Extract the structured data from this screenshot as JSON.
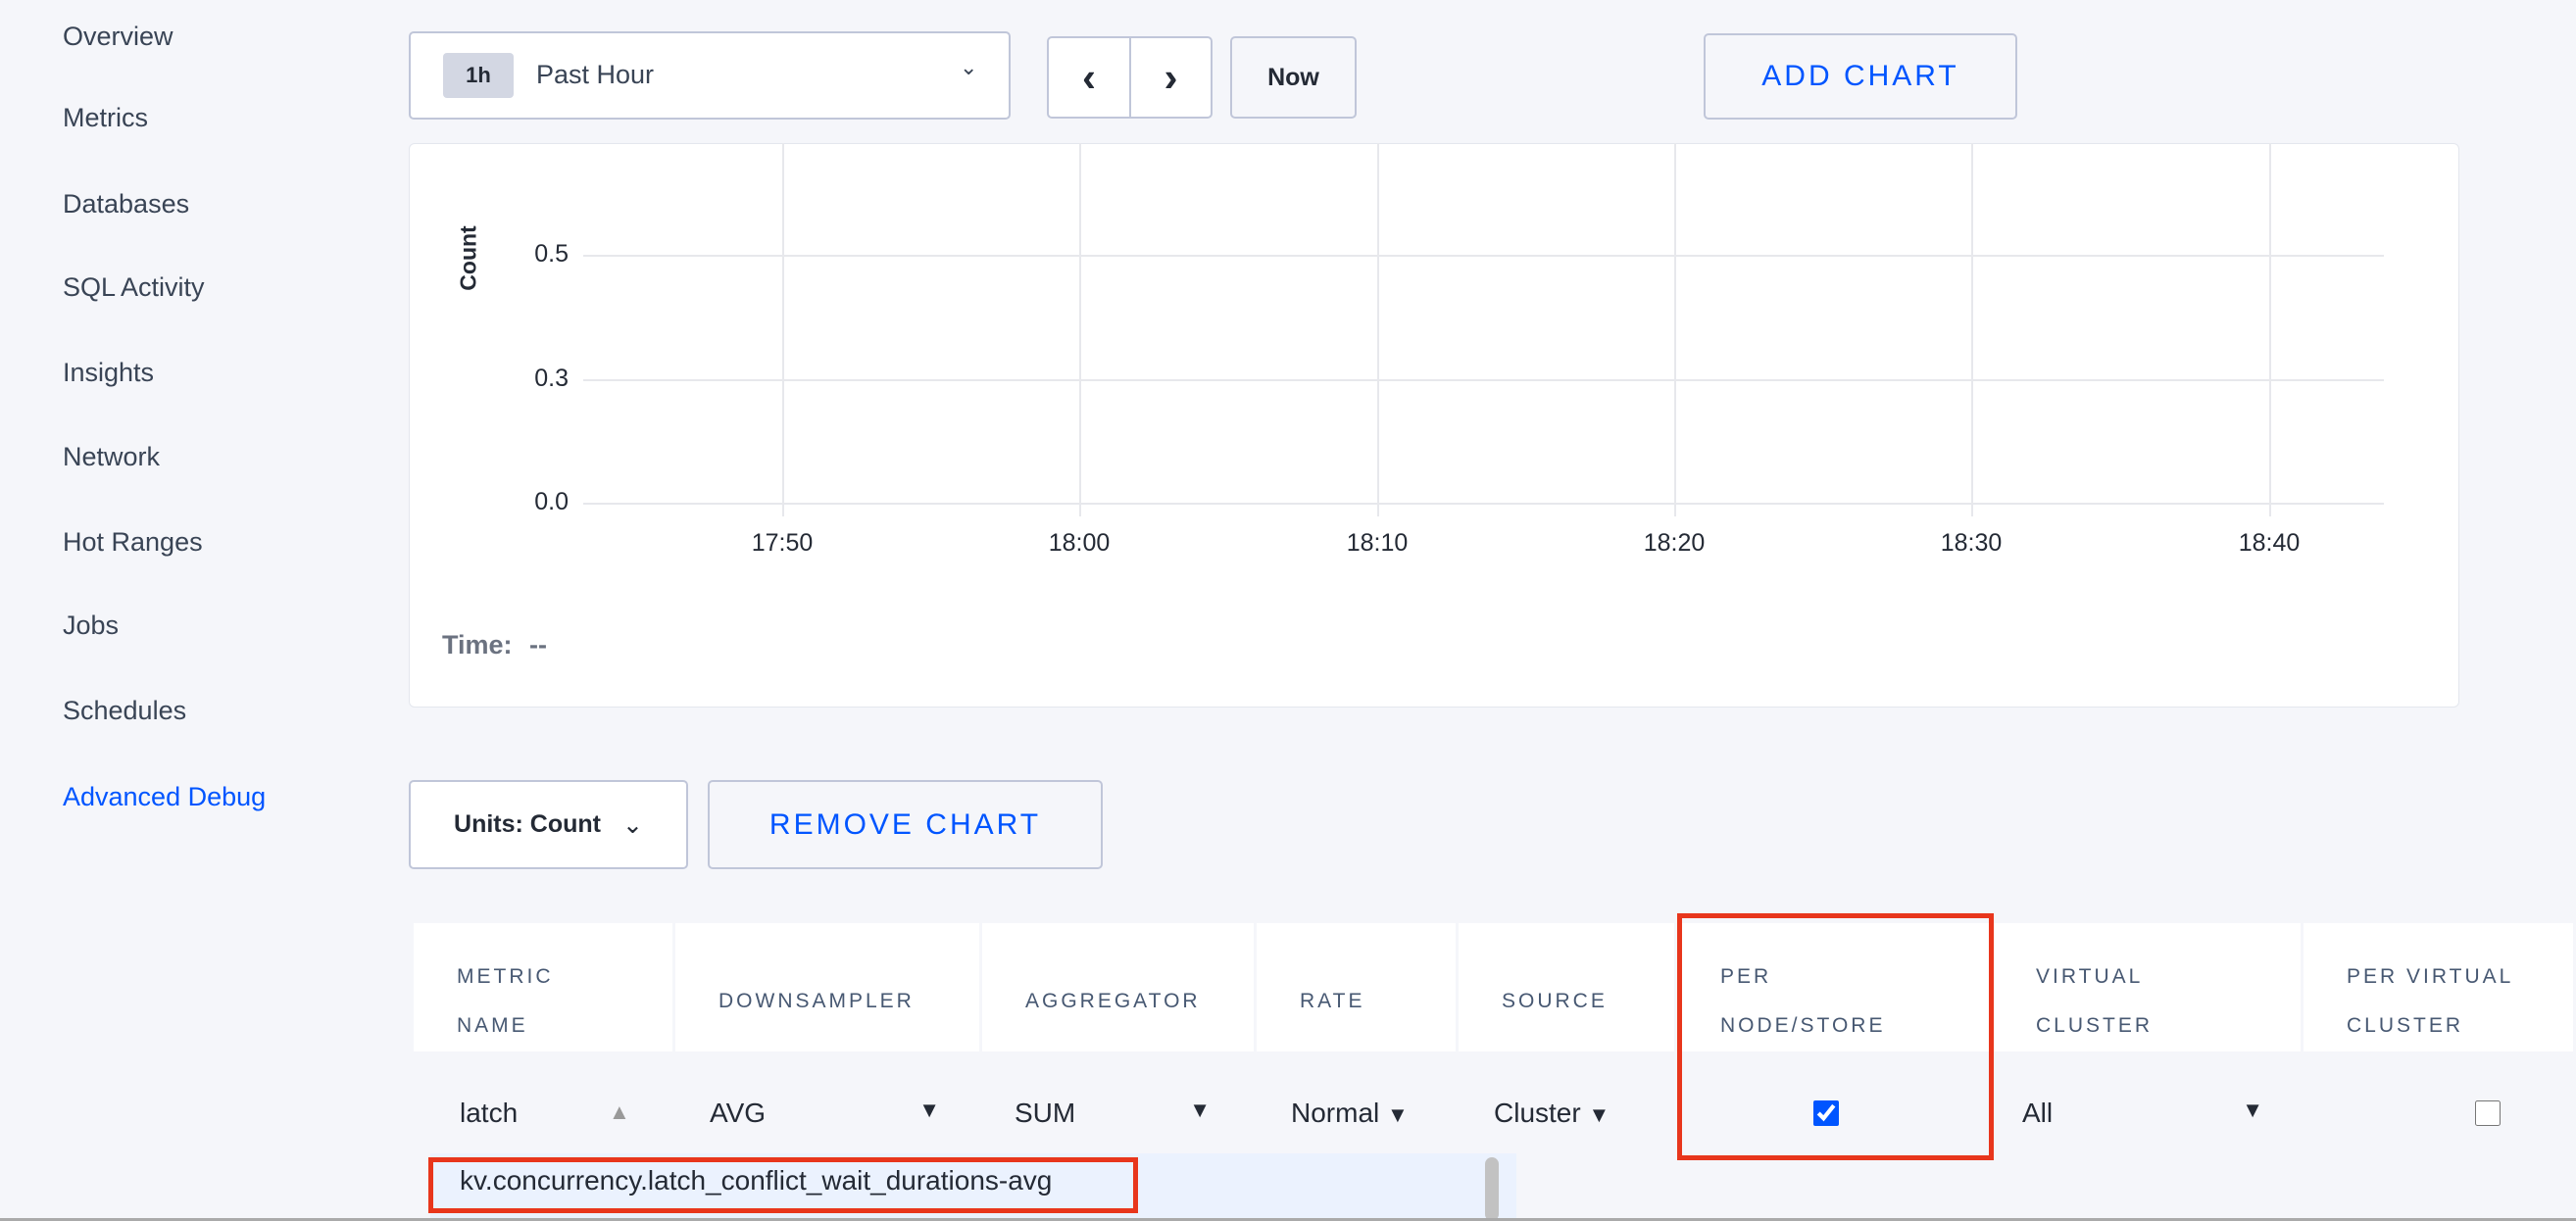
{
  "sidebar": {
    "items": [
      "Overview",
      "Metrics",
      "Databases",
      "SQL Activity",
      "Insights",
      "Network",
      "Hot Ranges",
      "Jobs",
      "Schedules",
      "Advanced Debug"
    ],
    "active": "Advanced Debug"
  },
  "toolbar": {
    "time_badge": "1h",
    "time_label": "Past Hour",
    "prev_icon": "chevron-left-icon",
    "next_icon": "chevron-right-icon",
    "now_label": "Now",
    "add_chart_label": "ADD CHART"
  },
  "chart_data": {
    "type": "line",
    "ylabel": "Count",
    "yticks": [
      "0.5",
      "0.3",
      "0.0"
    ],
    "xticks": [
      "17:50",
      "18:00",
      "18:10",
      "18:20",
      "18:30",
      "18:40"
    ],
    "series": [],
    "grid": true,
    "time_label": "Time:",
    "time_value": "--"
  },
  "controls": {
    "units_label": "Units: Count",
    "remove_chart_label": "REMOVE CHART"
  },
  "table": {
    "headers": [
      [
        "METRIC",
        "NAME"
      ],
      [
        "DOWNSAMPLER"
      ],
      [
        "AGGREGATOR"
      ],
      [
        "RATE"
      ],
      [
        "SOURCE"
      ],
      [
        "PER",
        "NODE/STORE"
      ],
      [
        "VIRTUAL",
        "CLUSTER"
      ],
      [
        "PER VIRTUAL",
        "CLUSTER"
      ]
    ],
    "row": {
      "metric_input": "latch",
      "downsampler": "AVG",
      "aggregator": "SUM",
      "rate": "Normal",
      "source": "Cluster",
      "per_node_store": true,
      "virtual_cluster": "All",
      "per_virtual_cluster": false
    },
    "suggestion": "kv.concurrency.latch_conflict_wait_durations-avg"
  },
  "colors": {
    "accent": "#0055ff",
    "highlight": "#e8361c"
  }
}
